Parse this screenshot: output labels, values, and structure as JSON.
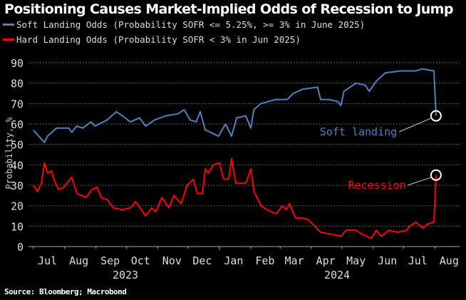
{
  "chart_data": {
    "type": "line",
    "title": "Positioning Causes Market-Implied Odds of Recession to Jump",
    "ylabel": "Probability, %",
    "xlabel": "",
    "ylim": [
      0,
      90
    ],
    "yticks": [
      "0",
      "10",
      "20",
      "30",
      "40",
      "50",
      "60",
      "70",
      "80",
      "90"
    ],
    "xticks": [
      "Jul",
      "Aug",
      "Sep",
      "Oct",
      "Nov",
      "Dec",
      "Jan",
      "Feb",
      "Mar",
      "Apr",
      "May",
      "Jun",
      "Jul",
      "Aug"
    ],
    "years": [
      "2023",
      "2024"
    ],
    "grid": true,
    "legend_position": "top-left",
    "source": "Source: Bloomberg; Macrobond",
    "series": [
      {
        "name": "Soft Landing Odds (Probability SOFR <= 5.25%, >= 3% in June 2025)",
        "color": "#4f81bd",
        "annotation": "Soft landing",
        "points": [
          [
            "2023-07-01",
            57
          ],
          [
            "2023-07-12",
            51
          ],
          [
            "2023-07-15",
            54
          ],
          [
            "2023-07-24",
            58
          ],
          [
            "2023-08-05",
            58
          ],
          [
            "2023-08-08",
            56
          ],
          [
            "2023-08-13",
            59
          ],
          [
            "2023-08-19",
            58
          ],
          [
            "2023-08-27",
            61
          ],
          [
            "2023-08-31",
            59
          ],
          [
            "2023-09-12",
            62
          ],
          [
            "2023-09-21",
            66
          ],
          [
            "2023-09-27",
            64
          ],
          [
            "2023-10-05",
            61
          ],
          [
            "2023-10-14",
            63
          ],
          [
            "2023-10-20",
            59
          ],
          [
            "2023-10-29",
            62
          ],
          [
            "2023-11-09",
            64
          ],
          [
            "2023-11-21",
            65
          ],
          [
            "2023-11-27",
            67
          ],
          [
            "2023-12-03",
            62
          ],
          [
            "2023-12-09",
            61
          ],
          [
            "2023-12-13",
            66
          ],
          [
            "2023-12-18",
            57
          ],
          [
            "2023-12-23",
            56
          ],
          [
            "2023-12-31",
            54
          ],
          [
            "2024-01-07",
            60
          ],
          [
            "2024-01-13",
            54
          ],
          [
            "2024-01-18",
            63
          ],
          [
            "2024-01-27",
            64
          ],
          [
            "2024-02-01",
            58
          ],
          [
            "2024-02-04",
            67
          ],
          [
            "2024-02-11",
            70
          ],
          [
            "2024-02-26",
            72
          ],
          [
            "2024-03-08",
            72
          ],
          [
            "2024-03-14",
            75
          ],
          [
            "2024-03-23",
            77
          ],
          [
            "2024-04-07",
            78
          ],
          [
            "2024-04-10",
            72
          ],
          [
            "2024-04-18",
            72
          ],
          [
            "2024-04-27",
            71
          ],
          [
            "2024-04-30",
            69
          ],
          [
            "2024-05-03",
            76
          ],
          [
            "2024-05-15",
            80
          ],
          [
            "2024-05-24",
            79
          ],
          [
            "2024-05-28",
            76
          ],
          [
            "2024-06-04",
            81
          ],
          [
            "2024-06-13",
            85
          ],
          [
            "2024-06-28",
            86
          ],
          [
            "2024-07-13",
            86
          ],
          [
            "2024-07-19",
            87
          ],
          [
            "2024-07-31",
            86
          ],
          [
            "2024-08-02",
            64
          ]
        ]
      },
      {
        "name": "Hard Landing Odds (Probability SOFR < 3% in Jun 2025)",
        "color": "#ff0000",
        "annotation": "Recession",
        "points": [
          [
            "2023-07-01",
            30
          ],
          [
            "2023-07-05",
            27
          ],
          [
            "2023-07-09",
            31
          ],
          [
            "2023-07-12",
            41
          ],
          [
            "2023-07-15",
            36
          ],
          [
            "2023-07-19",
            37
          ],
          [
            "2023-07-22",
            32
          ],
          [
            "2023-07-26",
            28
          ],
          [
            "2023-07-31",
            29
          ],
          [
            "2023-08-08",
            34
          ],
          [
            "2023-08-13",
            26
          ],
          [
            "2023-08-22",
            24
          ],
          [
            "2023-08-28",
            28
          ],
          [
            "2023-09-02",
            29
          ],
          [
            "2023-09-06",
            24
          ],
          [
            "2023-09-12",
            23
          ],
          [
            "2023-09-18",
            19
          ],
          [
            "2023-09-27",
            18
          ],
          [
            "2023-10-05",
            19
          ],
          [
            "2023-10-10",
            22
          ],
          [
            "2023-10-20",
            15
          ],
          [
            "2023-10-26",
            19
          ],
          [
            "2023-10-30",
            17
          ],
          [
            "2023-11-05",
            24
          ],
          [
            "2023-11-12",
            19
          ],
          [
            "2023-11-17",
            25
          ],
          [
            "2023-11-24",
            21
          ],
          [
            "2023-11-30",
            30
          ],
          [
            "2023-12-06",
            33
          ],
          [
            "2023-12-10",
            26
          ],
          [
            "2023-12-15",
            26
          ],
          [
            "2023-12-18",
            38
          ],
          [
            "2023-12-21",
            36
          ],
          [
            "2023-12-26",
            40
          ],
          [
            "2024-01-01",
            41
          ],
          [
            "2024-01-05",
            33
          ],
          [
            "2024-01-10",
            33
          ],
          [
            "2024-01-13",
            43
          ],
          [
            "2024-01-17",
            31
          ],
          [
            "2024-01-27",
            31
          ],
          [
            "2024-02-01",
            38
          ],
          [
            "2024-02-04",
            27
          ],
          [
            "2024-02-11",
            20
          ],
          [
            "2024-02-17",
            18
          ],
          [
            "2024-02-26",
            16
          ],
          [
            "2024-03-03",
            20
          ],
          [
            "2024-03-07",
            18
          ],
          [
            "2024-03-10",
            21
          ],
          [
            "2024-03-16",
            14
          ],
          [
            "2024-03-23",
            14
          ],
          [
            "2024-03-29",
            13
          ],
          [
            "2024-04-04",
            10
          ],
          [
            "2024-04-10",
            7
          ],
          [
            "2024-04-21",
            6
          ],
          [
            "2024-04-30",
            5
          ],
          [
            "2024-05-05",
            8
          ],
          [
            "2024-05-15",
            8
          ],
          [
            "2024-05-21",
            6
          ],
          [
            "2024-05-30",
            4
          ],
          [
            "2024-06-04",
            8
          ],
          [
            "2024-06-09",
            5
          ],
          [
            "2024-06-16",
            8
          ],
          [
            "2024-06-25",
            7
          ],
          [
            "2024-07-04",
            8
          ],
          [
            "2024-07-07",
            10
          ],
          [
            "2024-07-13",
            12
          ],
          [
            "2024-07-20",
            9
          ],
          [
            "2024-07-24",
            11
          ],
          [
            "2024-07-31",
            12
          ],
          [
            "2024-08-02",
            35
          ]
        ]
      }
    ]
  }
}
